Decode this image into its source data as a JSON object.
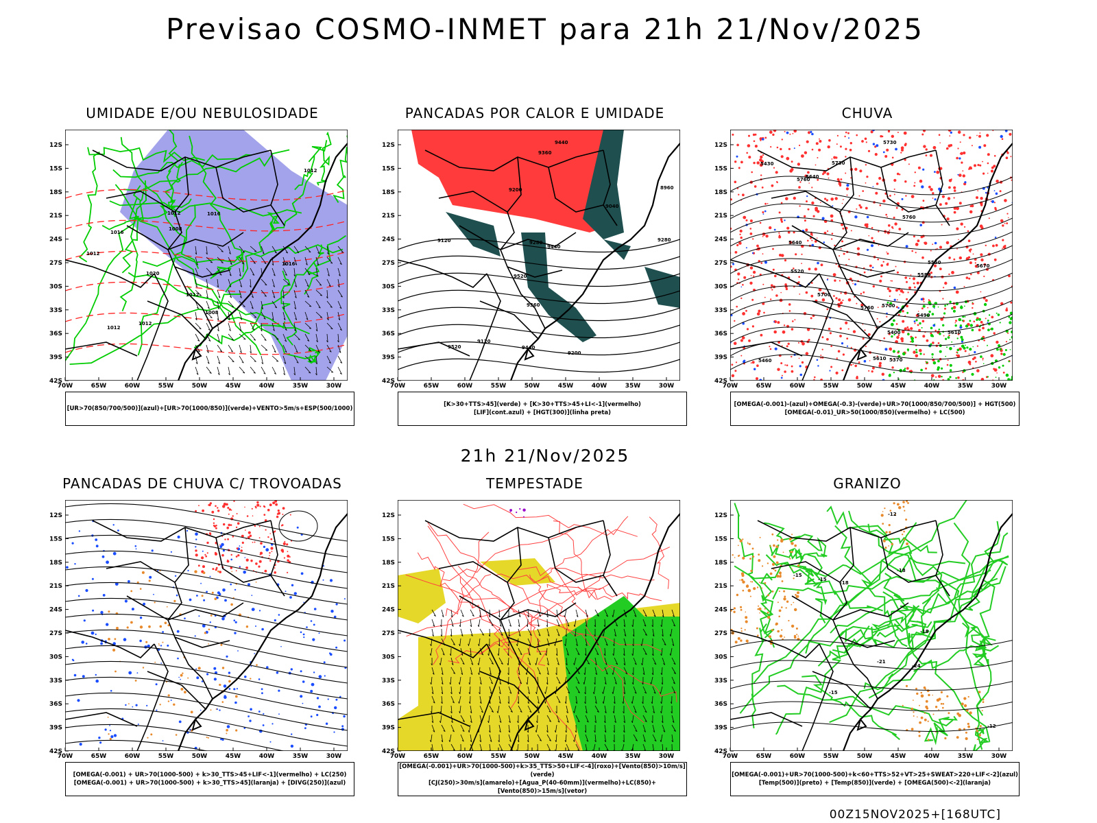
{
  "title": "Previsao COSMO-INMET  para 21h 21/Nov/2025",
  "mid_title": "21h 21/Nov/2025",
  "footer": "00Z15NOV2025+[168UTC]",
  "axes": {
    "lat_labels": [
      "12S",
      "15S",
      "18S",
      "21S",
      "24S",
      "27S",
      "30S",
      "33S",
      "36S",
      "39S",
      "42S"
    ],
    "lon_labels": [
      "70W",
      "65W",
      "60W",
      "55W",
      "50W",
      "45W",
      "40W",
      "35W",
      "30W"
    ]
  },
  "colors": {
    "blue": "#8c8ce6",
    "green": "#00cc00",
    "red": "#ff3b3b",
    "darkteal": "#1f4f4f",
    "yellow": "#e5d829",
    "orange": "#e88a2c",
    "purple": "#9900cc",
    "blue_dots": "#1a4dff"
  },
  "panels": [
    {
      "key": "umidade",
      "title": "UMIDADE E/OU NEBULOSIDADE",
      "legend": [
        "[UR>70(850/700/500)](azul)+[UR>70(1000/850)](verde)+VENTO>5m/s+ESP(500/1000)"
      ],
      "contour_labels": [
        "1012",
        "1012",
        "1008",
        "1016",
        "1012",
        "1012",
        "1020",
        "1012",
        "1016",
        "1016",
        "1008",
        "1012"
      ]
    },
    {
      "key": "pancadas_calor",
      "title": "PANCADAS POR CALOR E UMIDADE",
      "legend": [
        "[K>30+TTS>45](verde) + [K>30+TTS>45+LI<-1](vermelho)",
        "[LIF](cont.azul) + [HGT(300)](linha preta)"
      ],
      "contour_labels": [
        "9520",
        "9520",
        "9440",
        "9440",
        "9440",
        "9360",
        "9360",
        "9280",
        "9280",
        "9200",
        "9120",
        "9040",
        "8960",
        "9120",
        "9200"
      ]
    },
    {
      "key": "chuva",
      "title": "CHUVA",
      "legend": [
        "[OMEGA(-0.001)-(azul)+OMEGA(-0.3)-(verde)+UR>70(1000/850/700/500)] + HGT(500)",
        "[OMEGA(-0.01)_UR>50(1000/850)(vermelho) + LC(500)"
      ],
      "contour_labels": [
        "5760",
        "5760",
        "5760",
        "5730",
        "5730",
        "5700",
        "5700",
        "5670",
        "5640",
        "5640",
        "5610",
        "5580",
        "5550",
        "5520",
        "5490",
        "5460",
        "5430",
        "5400",
        "5370",
        "5610"
      ]
    },
    {
      "key": "trovoadas",
      "title": "PANCADAS DE CHUVA C/ TROVOADAS",
      "legend": [
        "[OMEGA(-0.001) + UR>70(1000-500) + k>30_TTS>45+LIF<-1](vermelho) + LC(250)",
        "[OMEGA(-0.001) + UR>70(1000-500) + k>30_TTS>45](laranja) + [DIVG(250)](azul)"
      ]
    },
    {
      "key": "tempestade",
      "title": "TEMPESTADE",
      "legend": [
        "[OMEGA(-0.001)+UR>70(1000-500)+k>35_TTS>50+LIF<-4](roxo)+[Vento(850)>10m/s](verde)",
        "[CJ(250)>30m/s](amarelo)+[Agua_P(40-60mm)](vermelho)+LC(850)+[Vento(850)>15m/s](vetor)"
      ]
    },
    {
      "key": "granizo",
      "title": "GRANIZO",
      "legend": [
        "[OMEGA(-0.001)+UR>70(1000-500)+k<60+TTS>52+VT>25+SWEAT>220+LIF<-2](azul)",
        "[Temp(500)](preto) + [Temp(850)](verde) + [OMEGA(500)<-2](laranja)"
      ],
      "contour_labels": [
        "-12",
        "-15",
        "-18",
        "-15",
        "-18",
        "-21",
        "-24",
        "-15",
        "-12",
        "-18"
      ]
    }
  ]
}
